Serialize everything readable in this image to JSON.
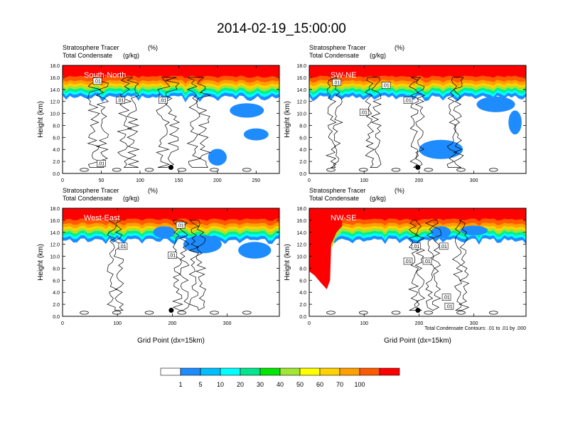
{
  "title": "2014-02-19_15:00:00",
  "chart_data": [
    {
      "type": "heatmap",
      "panel_label": "South-North",
      "left_string_1": "Stratosphere Tracer",
      "left_string_2": "Total Condensate",
      "right_string_1": "(%)",
      "right_string_2": "(g/kg)",
      "ylabel": "Height (km)",
      "xlabel": "",
      "xlim": [
        0,
        280
      ],
      "ylim": [
        0,
        18
      ],
      "xticks": [
        "0",
        "50",
        "100",
        "150",
        "200",
        "250"
      ],
      "yticks": [
        "0.0",
        "2.0",
        "4.0",
        "6.0",
        "8.0",
        "10.0",
        "12.0",
        "14.0",
        "16.0",
        "18.0"
      ],
      "contour_labels": [
        ".01",
        ".01",
        ".01",
        ".01"
      ],
      "marker_x": 140,
      "marker_y": 1.0
    },
    {
      "type": "heatmap",
      "panel_label": "SW-NE",
      "left_string_1": "Stratosphere Tracer",
      "left_string_2": "Total Condensate",
      "right_string_1": "(%)",
      "right_string_2": "(g/kg)",
      "ylabel": "Height (km)",
      "xlabel": "",
      "xlim": [
        0,
        395
      ],
      "ylim": [
        0,
        18
      ],
      "xticks": [
        "0",
        "100",
        "200",
        "300"
      ],
      "yticks": [
        "0.0",
        "2.0",
        "4.0",
        "6.0",
        "8.0",
        "10.0",
        "12.0",
        "14.0",
        "16.0",
        "18.0"
      ],
      "contour_labels": [
        ".01",
        ".01",
        ".01",
        ".01"
      ],
      "marker_x": 198,
      "marker_y": 1.0
    },
    {
      "type": "heatmap",
      "panel_label": "West-East",
      "left_string_1": "Stratosphere Tracer",
      "left_string_2": "Total Condensate",
      "right_string_1": "(%)",
      "right_string_2": "(g/kg)",
      "ylabel": "Height (km)",
      "xlabel": "Grid Point (dx=15km)",
      "xlim": [
        0,
        395
      ],
      "ylim": [
        0,
        18
      ],
      "xticks": [
        "0",
        "100",
        "200",
        "300"
      ],
      "yticks": [
        "0.0",
        "2.0",
        "4.0",
        "6.0",
        "8.0",
        "10.0",
        "12.0",
        "14.0",
        "16.0",
        "18.0"
      ],
      "contour_labels": [
        ".01",
        ".01",
        ".01"
      ],
      "marker_x": 198,
      "marker_y": 1.0
    },
    {
      "type": "heatmap",
      "panel_label": "NW-SE",
      "left_string_1": "Stratosphere Tracer",
      "left_string_2": "Total Condensate",
      "right_string_1": "(%)",
      "right_string_2": "(g/kg)",
      "ylabel": "Height (km)",
      "xlabel": "Grid Point (dx=15km)",
      "xlim": [
        0,
        395
      ],
      "ylim": [
        0,
        18
      ],
      "xticks": [
        "0",
        "100",
        "200",
        "300"
      ],
      "yticks": [
        "0.0",
        "2.0",
        "4.0",
        "6.0",
        "8.0",
        "10.0",
        "12.0",
        "14.0",
        "16.0",
        "18.0"
      ],
      "contour_labels": [
        ".01",
        ".01",
        ".01",
        ".01",
        ".01",
        ".01"
      ],
      "contour_info": "Total Condensate Contours: .01 to .01 by .000",
      "marker_x": 198,
      "marker_y": 1.0
    }
  ],
  "colorbar": {
    "labels": [
      "1",
      "5",
      "10",
      "20",
      "30",
      "40",
      "50",
      "60",
      "70",
      "100"
    ],
    "colors": [
      "#ffffff",
      "#1e8cff",
      "#00bfff",
      "#00ffff",
      "#00f08c",
      "#00e600",
      "#a0e632",
      "#ffff00",
      "#ffd200",
      "#ffa000",
      "#ff5a00",
      "#ff0000"
    ]
  }
}
